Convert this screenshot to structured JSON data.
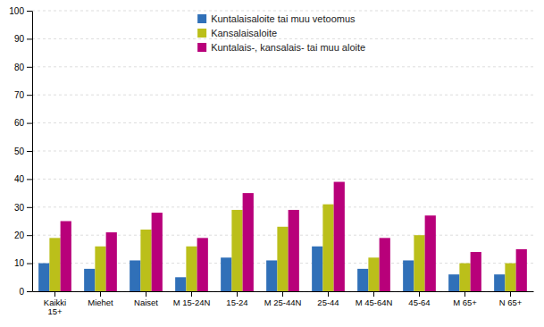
{
  "chart_data": {
    "type": "bar",
    "categories": [
      "Kaikki\n15+",
      "Miehet",
      "Naiset",
      "M 15-24N",
      "15-24",
      "M 25-44N",
      "25-44",
      "M 45-64N",
      "45-64",
      "M 65+",
      "N 65+"
    ],
    "series": [
      {
        "name": "Kuntalaisaloite tai muu vetoomus",
        "color": "#3070B8",
        "values": [
          10,
          8,
          11,
          5,
          12,
          11,
          16,
          8,
          11,
          6,
          6
        ]
      },
      {
        "name": "Kansalaisaloite",
        "color": "#BBBF1A",
        "values": [
          19,
          16,
          22,
          16,
          29,
          23,
          31,
          12,
          20,
          10,
          10
        ]
      },
      {
        "name": "Kuntalais-, kansalais- tai muu aloite",
        "color": "#B8007A",
        "values": [
          25,
          21,
          28,
          19,
          35,
          29,
          39,
          19,
          27,
          14,
          15
        ]
      }
    ],
    "ylim": [
      0,
      100
    ],
    "yticks": [
      0,
      10,
      20,
      30,
      40,
      50,
      60,
      70,
      80,
      90,
      100
    ],
    "grid": true,
    "legend": "upper left"
  }
}
